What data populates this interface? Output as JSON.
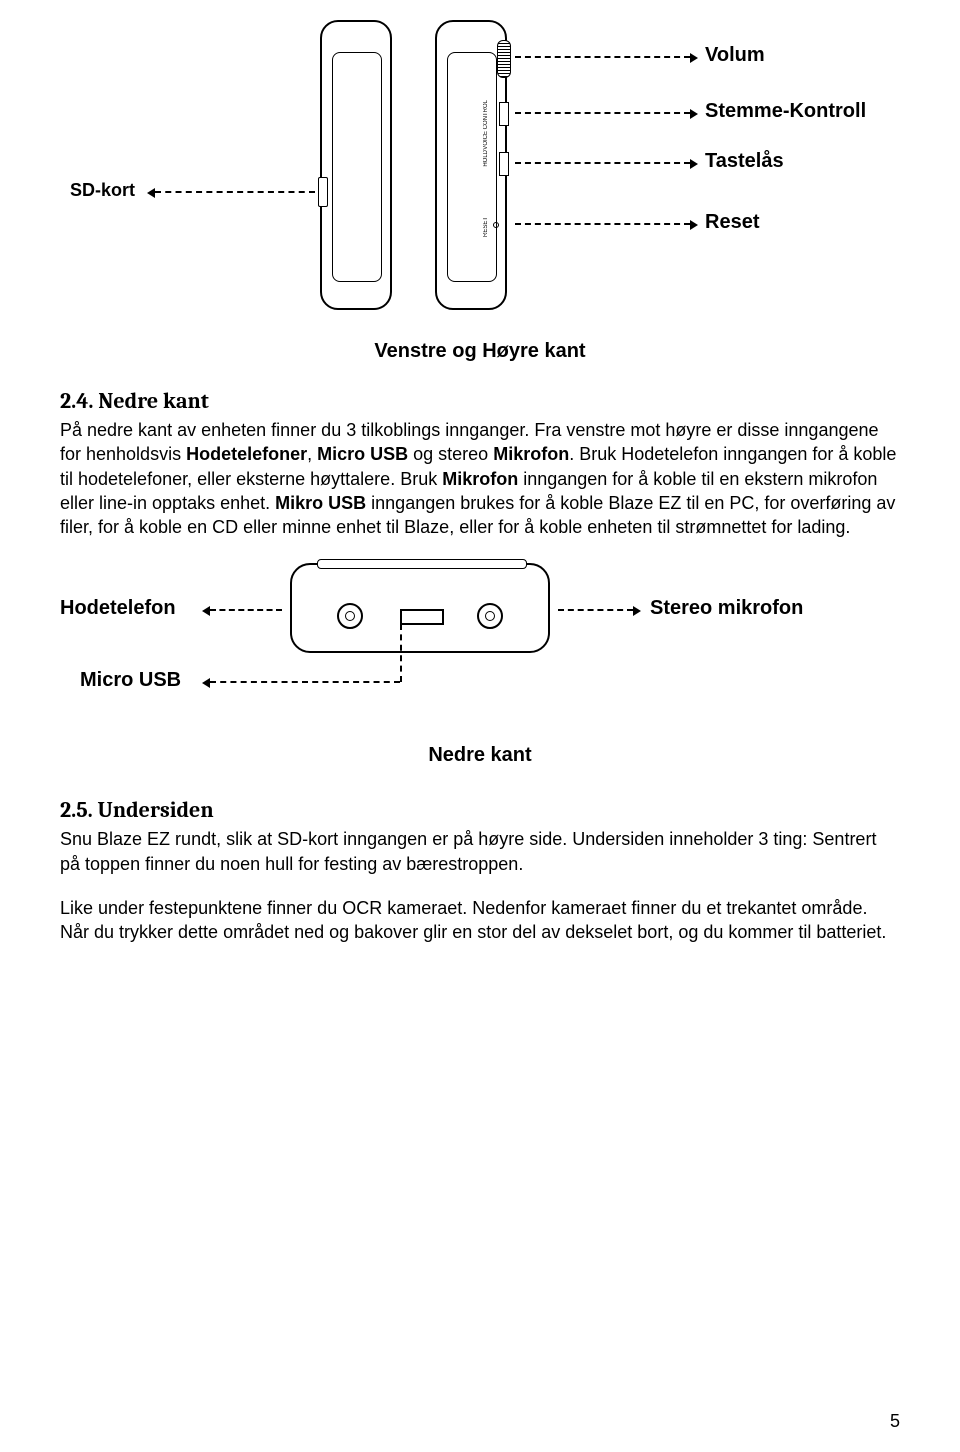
{
  "top_diagram": {
    "labels": {
      "sd_kort": "SD-kort",
      "volum": "Volum",
      "stemme_kontroll": "Stemme-Kontroll",
      "tastelas": "Tastelås",
      "reset": "Reset"
    },
    "caption": "Venstre og Høyre kant"
  },
  "sections": {
    "nedre_kant": {
      "heading": "2.4. Nedre kant",
      "body_html": "På nedre kant av enheten finner du 3 tilkoblings innganger. Fra venstre mot høyre er disse inngangene for henholdsvis <b>Hodetelefoner</b>, <b>Micro USB</b> og stereo <b>Mikrofon</b>. Bruk Hodetelefon inngangen for å koble til hodetelefoner, eller eksterne høyttalere. Bruk <b>Mikrofon</b> inngangen for å koble til en ekstern mikrofon eller line-in opptaks enhet. <b>Mikro USB</b> inngangen brukes for å koble Blaze EZ til en PC, for overføring av filer, for å koble en CD eller minne enhet til Blaze, eller for å koble enheten til strømnettet for lading."
    },
    "undersiden": {
      "heading": "2.5. Undersiden",
      "body1": "Snu Blaze EZ rundt, slik at SD-kort inngangen er på høyre side. Undersiden inneholder 3 ting: Sentrert på toppen finner du noen hull for festing av bærestroppen.",
      "body2": "Like under festepunktene finner du OCR kameraet. Nedenfor kameraet finner du et trekantet område. Når du trykker dette området ned og bakover glir en stor del av dekselet bort, og du kommer til batteriet."
    }
  },
  "bottom_diagram": {
    "labels": {
      "hodetelefon": "Hodetelefon",
      "micro_usb": "Micro USB",
      "stereo_mikrofon": "Stereo mikrofon"
    },
    "caption": "Nedre kant"
  },
  "page_number": "5"
}
